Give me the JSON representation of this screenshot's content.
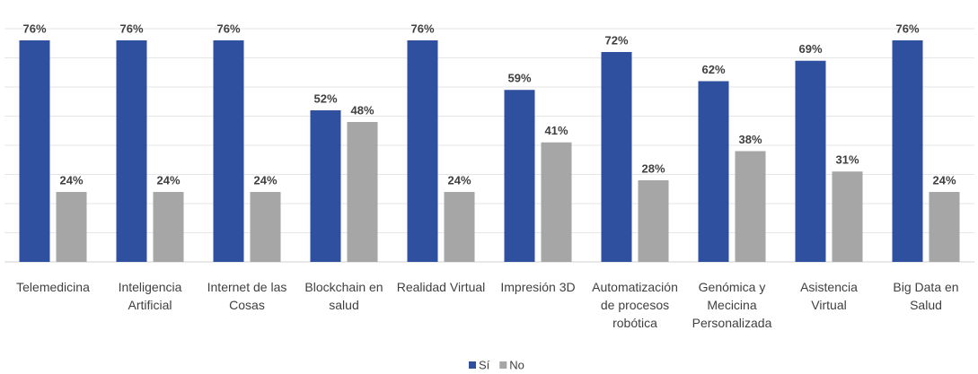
{
  "chart_data": {
    "type": "bar",
    "categories": [
      "Telemedicina",
      "Inteligencia Artificial",
      "Internet de las Cosas",
      "Blockchain en salud",
      "Realidad Virtual",
      "Impresión 3D",
      "Automatización de procesos robótica",
      "Genómica y Mecicina Personalizada",
      "Asistencia Virtual",
      "Big Data en Salud"
    ],
    "series": [
      {
        "name": "Sí",
        "color": "#2f4f9f",
        "values": [
          76,
          76,
          76,
          52,
          76,
          59,
          72,
          62,
          69,
          76
        ],
        "value_labels": [
          "76%",
          "76%",
          "76%",
          "52%",
          "76%",
          "59%",
          "72%",
          "62%",
          "69%",
          "76%"
        ]
      },
      {
        "name": "No",
        "color": "#a6a6a6",
        "values": [
          24,
          24,
          24,
          48,
          24,
          41,
          28,
          38,
          31,
          24
        ],
        "value_labels": [
          "24%",
          "24%",
          "24%",
          "48%",
          "24%",
          "41%",
          "28%",
          "38%",
          "31%",
          "24%"
        ]
      }
    ],
    "ylim": [
      0,
      80
    ],
    "yticks": [
      0,
      10,
      20,
      30,
      40,
      50,
      60,
      70,
      80
    ],
    "grid": true,
    "legend": "bottom"
  }
}
